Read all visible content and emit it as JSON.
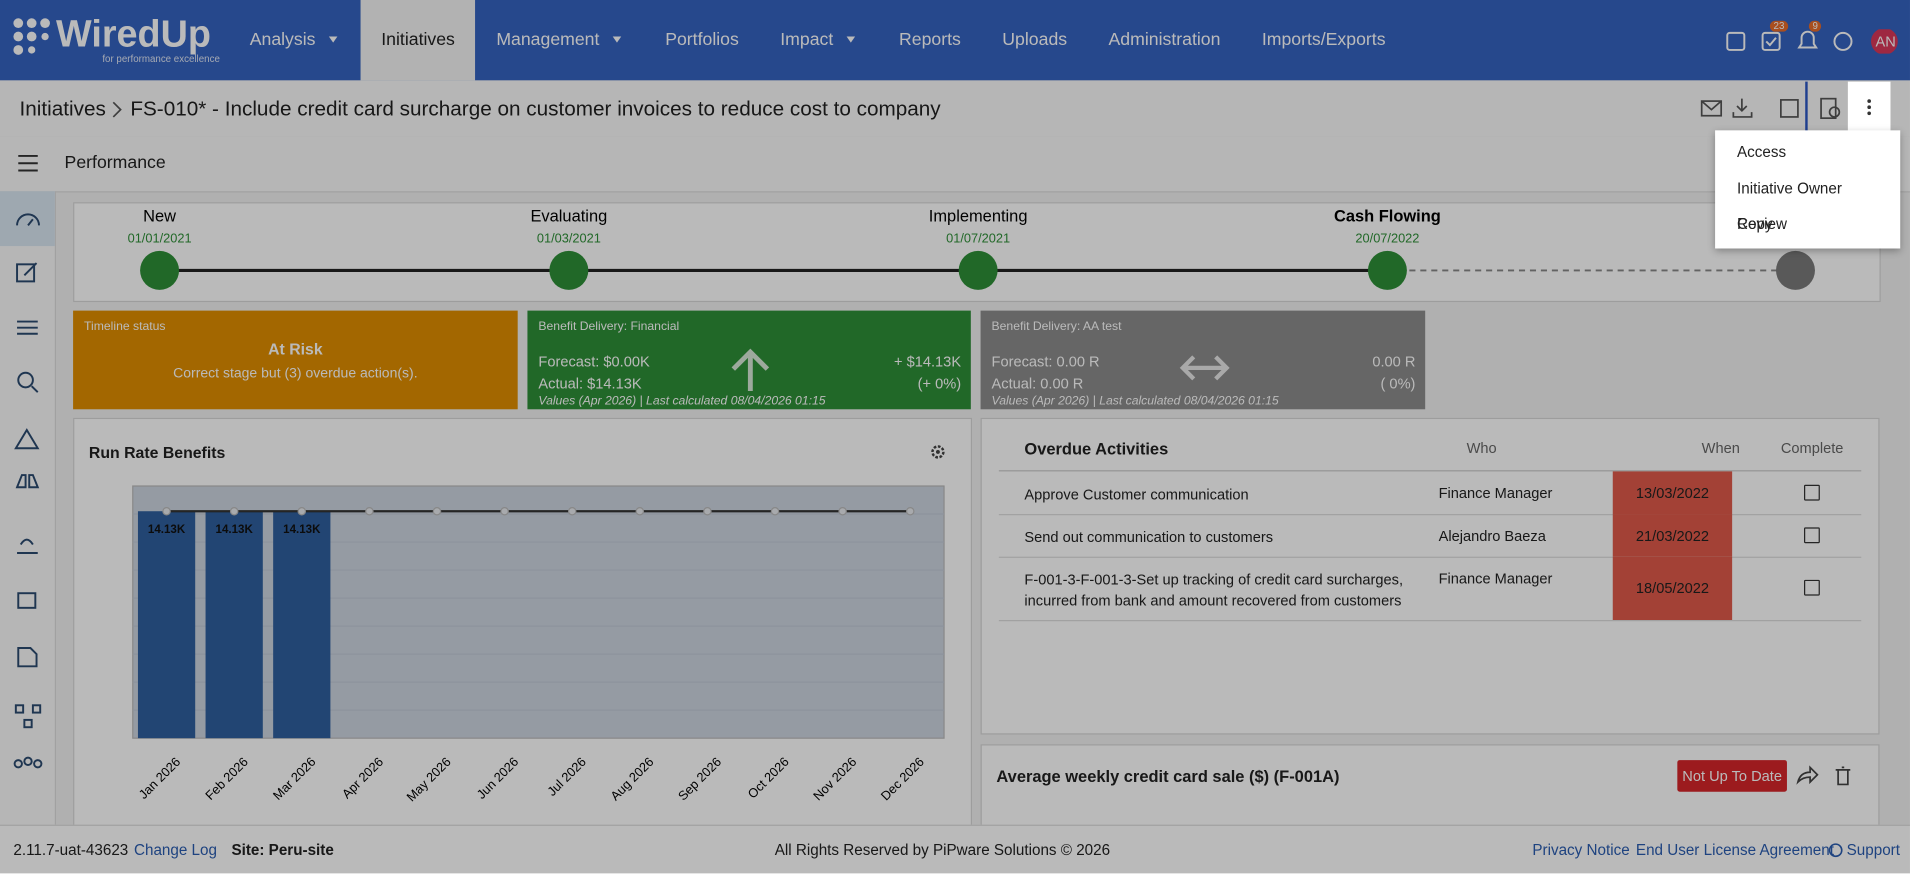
{
  "nav": {
    "logo": "WiredUp",
    "tagline": "for performance excellence",
    "items": [
      {
        "label": "Analysis",
        "dropdown": true
      },
      {
        "label": "Initiatives",
        "active": true
      },
      {
        "label": "Management",
        "dropdown": true
      },
      {
        "label": "Portfolios"
      },
      {
        "label": "Impact",
        "dropdown": true
      },
      {
        "label": "Reports"
      },
      {
        "label": "Uploads"
      },
      {
        "label": "Administration"
      },
      {
        "label": "Imports/Exports"
      }
    ],
    "tasks_badge": "23",
    "alerts_badge": "9",
    "avatar": "AN"
  },
  "breadcrumb": {
    "root": "Initiatives",
    "title": "FS-010* - Include credit card surcharge on customer invoices to reduce cost to company"
  },
  "menu": [
    "Access",
    "Initiative Owner Review",
    "Copy"
  ],
  "section": "Performance",
  "stages": [
    {
      "name": "New",
      "date": "01/01/2021"
    },
    {
      "name": "Evaluating",
      "date": "01/03/2021"
    },
    {
      "name": "Implementing",
      "date": "01/07/2021"
    },
    {
      "name": "Cash Flowing",
      "date": "20/07/2022",
      "current": true
    }
  ],
  "cards": {
    "timeline": {
      "label": "Timeline status",
      "status": "At Risk",
      "note": "Correct stage but (3) overdue action(s)."
    },
    "financial": {
      "label": "Benefit Delivery: Financial",
      "forecast": "Forecast: $0.00K",
      "actual": "Actual: $14.13K",
      "delta": "+ $14.13K",
      "pct": "(+ 0%)",
      "footer": "Values (Apr 2026) | Last calculated 08/04/2026 01:15"
    },
    "aa": {
      "label": "Benefit Delivery: AA test",
      "forecast": "Forecast: 0.00 R",
      "actual": "Actual: 0.00 R",
      "delta": "0.00 R",
      "pct": "( 0%)",
      "footer": "Values (Apr 2026) | Last calculated 08/04/2026 01:15"
    }
  },
  "chart_data": {
    "type": "bar",
    "title": "Run Rate Benefits",
    "categories": [
      "Jan 2026",
      "Feb 2026",
      "Mar 2026",
      "Apr 2026",
      "May 2026",
      "Jun 2026",
      "Jul 2026",
      "Aug 2026",
      "Sep 2026",
      "Oct 2026",
      "Nov 2026",
      "Dec 2026"
    ],
    "series": [
      {
        "color": "#2f5f9e",
        "values": [
          14130,
          14130,
          14130,
          null,
          null,
          null,
          null,
          null,
          null,
          null,
          null,
          null
        ],
        "value_labels": [
          "14.13K",
          "14.13K",
          "14.13K",
          null,
          null,
          null,
          null,
          null,
          null,
          null,
          null,
          null
        ]
      },
      {
        "type": "line",
        "color": "#333333",
        "values": [
          14130,
          14130,
          14130,
          14130,
          14130,
          14130,
          14130,
          14130,
          14130,
          14130,
          14130,
          14130
        ]
      }
    ],
    "ylim": [
      0,
      15700
    ]
  },
  "overdue": {
    "title": "Overdue Activities",
    "headers": [
      "Who",
      "When",
      "Complete"
    ],
    "rows": [
      [
        "Approve Customer communication",
        "Finance Manager",
        "13/03/2022"
      ],
      [
        "Send out communication to customers",
        "Alejandro Baeza",
        "21/03/2022"
      ],
      [
        "F-001-3-F-001-3-Set up tracking of credit card surcharges, incurred from bank and amount recovered from customers",
        "Finance Manager",
        "18/05/2022"
      ]
    ]
  },
  "measure": {
    "title": "Average weekly credit card sale ($) (F-001A)",
    "badge": "Not Up To Date"
  },
  "footer": {
    "version": "2.11.7-uat-43623",
    "changelog": "Change Log",
    "site": "Site: Peru-site",
    "copyright": "All Rights Reserved by PiPware Solutions © 2026",
    "privacy": "Privacy Notice",
    "eula": "End User License Agreement",
    "support": "Support"
  }
}
